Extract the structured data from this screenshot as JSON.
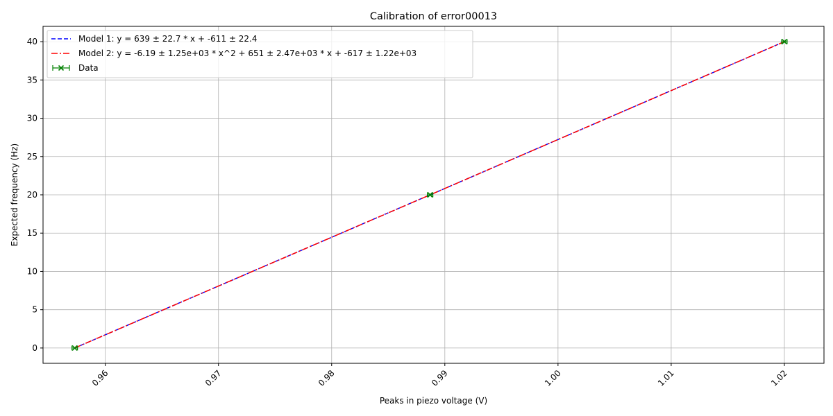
{
  "chart_data": {
    "type": "line",
    "title": "Calibration of error00013",
    "xlabel": "Peaks in piezo voltage (V)",
    "ylabel": "Expected frequency (Hz)",
    "xlim": [
      0.9545,
      1.0235
    ],
    "ylim": [
      -2,
      42
    ],
    "xticks": [
      0.96,
      0.97,
      0.98,
      0.99,
      1.0,
      1.01,
      1.02
    ],
    "xtick_labels": [
      "0.96",
      "0.97",
      "0.98",
      "0.99",
      "1.00",
      "1.01",
      "1.02"
    ],
    "yticks": [
      0,
      5,
      10,
      15,
      20,
      25,
      30,
      35,
      40
    ],
    "ytick_labels": [
      "0",
      "5",
      "10",
      "15",
      "20",
      "25",
      "30",
      "35",
      "40"
    ],
    "grid": true,
    "legend_position": "top-left",
    "series": [
      {
        "name": "Model 1: y = 639 ± 22.7 * x + -611 ± 22.4",
        "style": "dashed",
        "color": "#0000ff",
        "x": [
          0.9573,
          0.9887,
          1.02
        ],
        "y": [
          0,
          20,
          40
        ]
      },
      {
        "name": "Model 2: y = -6.19 ± 1.25e+03 * x^2 + 651 ± 2.47e+03 * x + -617 ± 1.22e+03",
        "style": "dashdot",
        "color": "#ff0000",
        "x": [
          0.9573,
          0.9887,
          1.02
        ],
        "y": [
          0,
          20,
          40
        ]
      },
      {
        "name": "Data",
        "style": "markers-x-errorbar",
        "color": "#008000",
        "x": [
          0.9573,
          0.9887,
          1.02
        ],
        "y": [
          0,
          20,
          40
        ]
      }
    ]
  }
}
